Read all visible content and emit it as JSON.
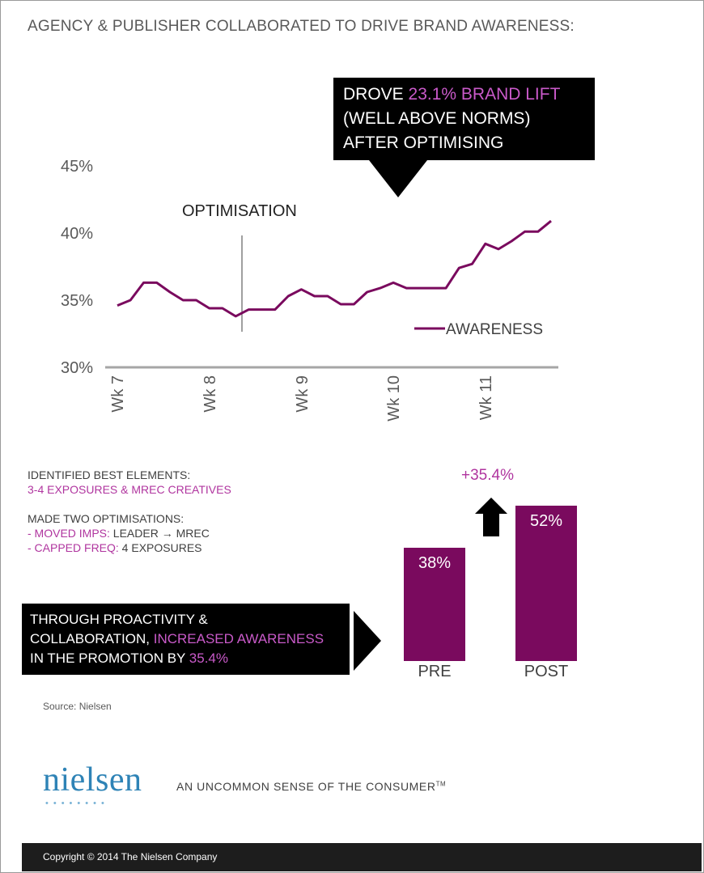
{
  "title": "AGENCY & PUBLISHER COLLABORATED TO DRIVE BRAND AWARENESS:",
  "callout": {
    "pre": "DROVE ",
    "highlight": "23.1% BRAND LIFT",
    "post": "(WELL ABOVE NORMS) AFTER OPTIMISING"
  },
  "chart_data": [
    {
      "type": "line",
      "ylim": [
        30,
        45
      ],
      "y_ticks": [
        "30%",
        "35%",
        "40%",
        "45%"
      ],
      "x_ticks": [
        "Wk 7",
        "Wk 8",
        "Wk 9",
        "Wk 10",
        "Wk 11"
      ],
      "annotation": "OPTIMISATION",
      "series": [
        {
          "name": "AWARENESS",
          "color": "#7a0a5e",
          "values": [
            34.6,
            35.0,
            36.3,
            36.3,
            35.6,
            35.0,
            35.0,
            34.4,
            34.4,
            33.8,
            34.3,
            34.3,
            34.3,
            35.3,
            35.8,
            35.3,
            35.3,
            34.7,
            34.7,
            35.6,
            35.9,
            36.3,
            35.9,
            35.9,
            35.9,
            35.9,
            37.4,
            37.7,
            39.2,
            38.8,
            39.4,
            40.1,
            40.1,
            40.9
          ]
        }
      ]
    },
    {
      "type": "bar",
      "categories": [
        "PRE",
        "POST"
      ],
      "values": [
        38,
        52
      ],
      "value_labels": [
        "38%",
        "52%"
      ],
      "uplift": "+35.4%",
      "color": "#7a0a5e"
    }
  ],
  "notes": {
    "identified_heading": "IDENTIFIED BEST ELEMENTS:",
    "identified_value": "3-4 EXPOSURES & MREC CREATIVES",
    "optimisations_heading": "MADE TWO OPTIMISATIONS:",
    "opt1_label": "- MOVED IMPS:",
    "opt1_value": " LEADER → MREC",
    "opt2_label": "- CAPPED FREQ:",
    "opt2_value": " 4 EXPOSURES"
  },
  "conclusion": {
    "line1": "THROUGH PROACTIVITY &",
    "line2_a": "COLLABORATION, ",
    "line2_hl": "INCREASED AWARENESS",
    "line3_a": "IN THE PROMOTION BY ",
    "line3_hl": "35.4%"
  },
  "source": "Source: Nielsen",
  "logo": "nielsen",
  "logo_dots": "••••••••",
  "tagline": "AN UNCOMMON SENSE OF THE CONSUMER",
  "tagline_tm": "TM",
  "copyright": "Copyright © 2014 The Nielsen Company"
}
